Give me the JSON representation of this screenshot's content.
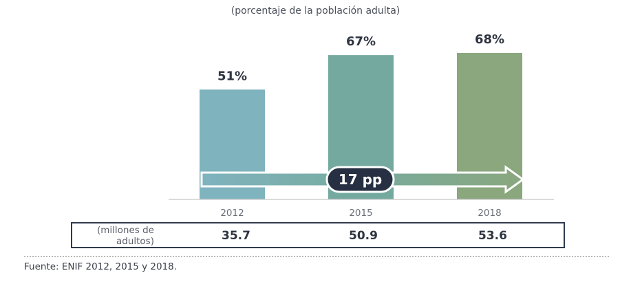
{
  "subtitle": "(porcentaje de la población adulta)",
  "colors": [
    "#7fb3be",
    "#74a99f",
    "#8aa77e"
  ],
  "chart_data": {
    "type": "bar",
    "categories": [
      "2012",
      "2015",
      "2018"
    ],
    "values": [
      51,
      67,
      68
    ],
    "value_labels": [
      "51%",
      "67%",
      "68%"
    ],
    "ylim": [
      0,
      68
    ],
    "annotation": "17 pp"
  },
  "table": {
    "label": "(millones de\nadultos)",
    "values": [
      "35.7",
      "50.9",
      "53.6"
    ]
  },
  "source": "Fuente: ENIF 2012, 2015 y 2018."
}
